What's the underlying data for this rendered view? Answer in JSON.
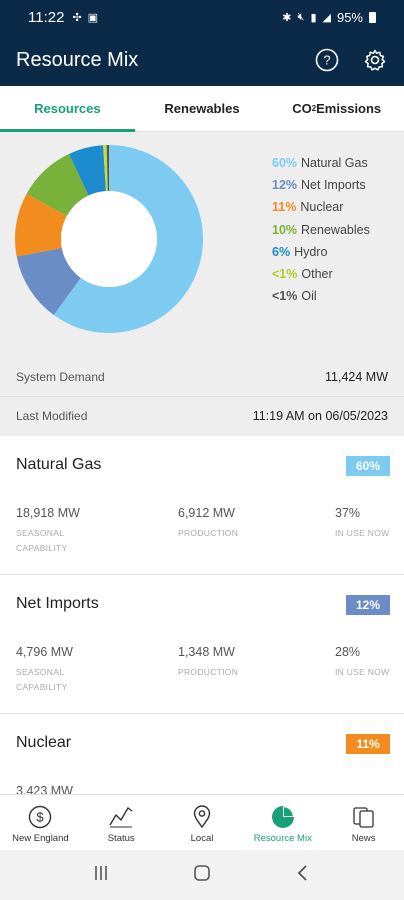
{
  "status_bar": {
    "time": "11:22",
    "battery": "95%"
  },
  "app_bar": {
    "title": "Resource Mix"
  },
  "tabs": [
    {
      "label": "Resources",
      "active": true
    },
    {
      "label": "Renewables",
      "active": false
    },
    {
      "label": "CO",
      "sub": "2",
      "suffix": " Emissions",
      "active": false
    }
  ],
  "chart_data": {
    "type": "pie",
    "donut": true,
    "categories": [
      "Natural Gas",
      "Net Imports",
      "Nuclear",
      "Renewables",
      "Hydro",
      "Other",
      "Oil"
    ],
    "values": [
      60,
      12,
      11,
      10,
      6,
      0.6,
      0.4
    ],
    "colors": [
      "#7ecbf2",
      "#6a8dc6",
      "#f28c1e",
      "#79b23a",
      "#1c8ccf",
      "#c8dc3c",
      "#555555"
    ]
  },
  "legend": [
    {
      "pct": "60%",
      "label": "Natural Gas",
      "color": "#7ecbf2"
    },
    {
      "pct": "12%",
      "label": "Net Imports",
      "color": "#6a8dc6"
    },
    {
      "pct": "11%",
      "label": "Nuclear",
      "color": "#f28c1e"
    },
    {
      "pct": "10%",
      "label": "Renewables",
      "color": "#79b23a"
    },
    {
      "pct": "6%",
      "label": "Hydro",
      "color": "#1c8ccf"
    },
    {
      "pct": "<1%",
      "label": "Other",
      "color": "#b5cc2a"
    },
    {
      "pct": "<1%",
      "label": "Oil",
      "color": "#555555"
    }
  ],
  "summary": {
    "demand_label": "System Demand",
    "demand_value": "11,424 MW",
    "modified_label": "Last Modified",
    "modified_value": "11:19 AM on 06/05/2023"
  },
  "cards": [
    {
      "name": "Natural Gas",
      "badge": "60%",
      "badge_color": "#7ecbf2",
      "capability": "18,918 MW",
      "production": "6,912 MW",
      "in_use": "37%"
    },
    {
      "name": "Net Imports",
      "badge": "12%",
      "badge_color": "#6a8dc6",
      "capability": "4,796 MW",
      "production": "1,348 MW",
      "in_use": "28%"
    },
    {
      "name": "Nuclear",
      "badge": "11%",
      "badge_color": "#f28c1e",
      "capability": "3,423 MW",
      "production": "",
      "in_use": ""
    }
  ],
  "card_labels": {
    "capability_1": "SEASONAL",
    "capability_2": "CAPABILITY",
    "production": "PRODUCTION",
    "in_use": "IN USE NOW"
  },
  "bottom_nav": [
    {
      "label": "New England",
      "icon": "dollar-circle-icon"
    },
    {
      "label": "Status",
      "icon": "trend-line-icon"
    },
    {
      "label": "Local",
      "icon": "map-pin-icon"
    },
    {
      "label": "Resource Mix",
      "icon": "pie-chart-icon",
      "active": true
    },
    {
      "label": "News",
      "icon": "news-pages-icon"
    }
  ],
  "accent_color": "#1aa078",
  "header_color": "#0b2a47"
}
